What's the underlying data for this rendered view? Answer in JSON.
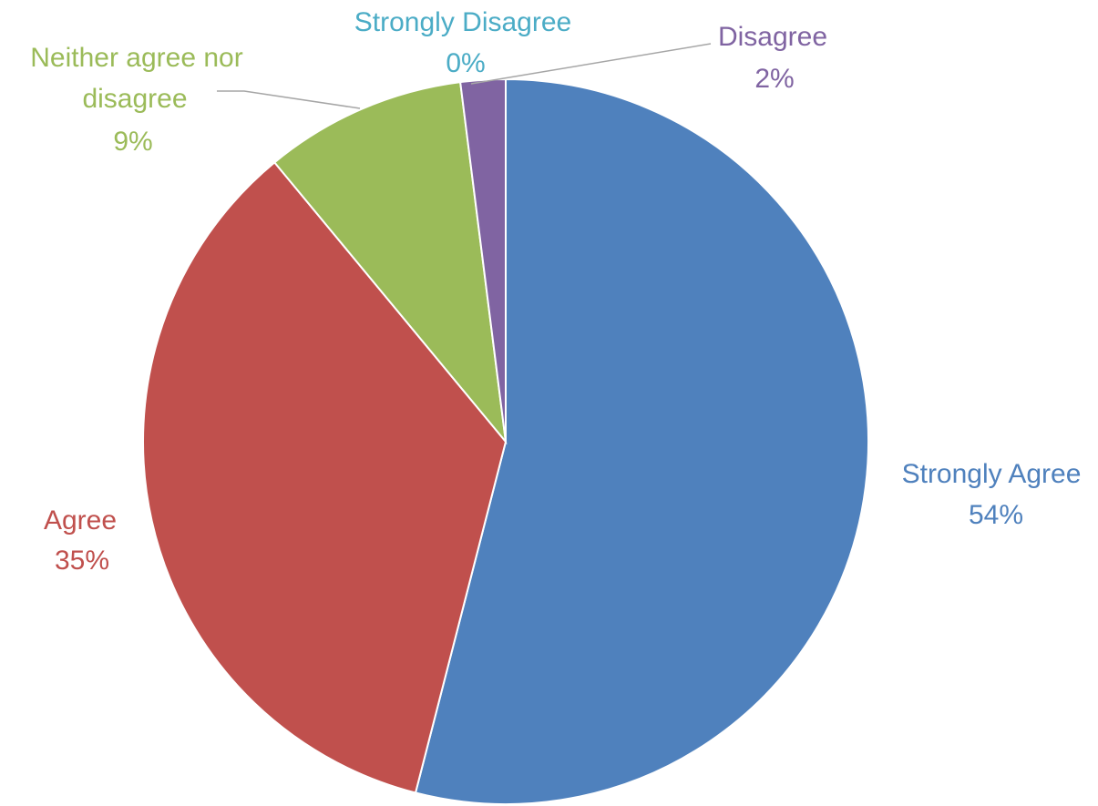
{
  "chart_data": {
    "type": "pie",
    "title": "",
    "start_angle_deg": 0,
    "direction": "clockwise",
    "slices": [
      {
        "name": "Strongly Agree",
        "value": 54,
        "label": "54%",
        "color": "#4F81BD",
        "label_color": "#4F81BD"
      },
      {
        "name": "Agree",
        "value": 35,
        "label": "35%",
        "color": "#C0504D",
        "label_color": "#C0504D"
      },
      {
        "name": "Neither agree nor disagree",
        "value": 9,
        "label": "9%",
        "color": "#9BBB59",
        "label_color": "#9BBB59"
      },
      {
        "name": "Strongly Disagree",
        "value": 0,
        "label": "0%",
        "color": "#4BACC6",
        "label_color": "#4BACC6"
      },
      {
        "name": "Disagree",
        "value": 2,
        "label": "2%",
        "color": "#8064A2",
        "label_color": "#8064A2"
      }
    ],
    "legend": "none",
    "leader_line_color": "#A6A6A6"
  }
}
